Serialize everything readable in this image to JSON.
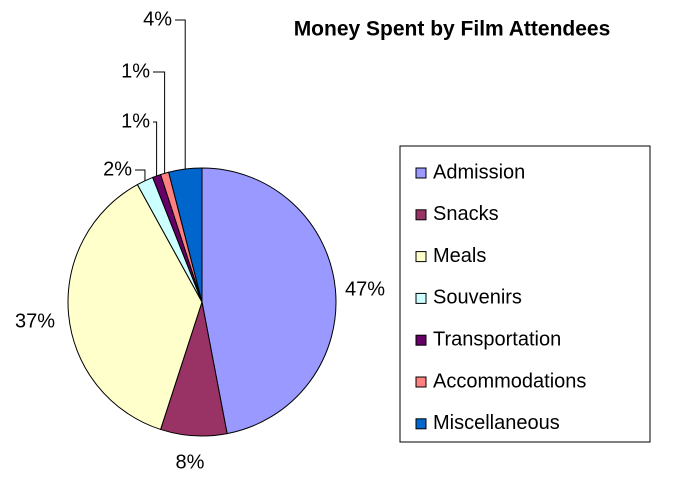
{
  "chart_data": {
    "type": "pie",
    "title": "Money Spent by Film Attendees",
    "categories": [
      "Admission",
      "Snacks",
      "Meals",
      "Souvenirs",
      "Transportation",
      "Accommodations",
      "Miscellaneous"
    ],
    "values": [
      47,
      8,
      37,
      2,
      1,
      1,
      4
    ],
    "value_labels": [
      "47%",
      "8%",
      "37%",
      "2%",
      "1%",
      "1%",
      "4%"
    ],
    "colors": [
      "#9999ff",
      "#993366",
      "#ffffcc",
      "#ccffff",
      "#660066",
      "#ff8080",
      "#0066cc"
    ],
    "legend": "right"
  }
}
